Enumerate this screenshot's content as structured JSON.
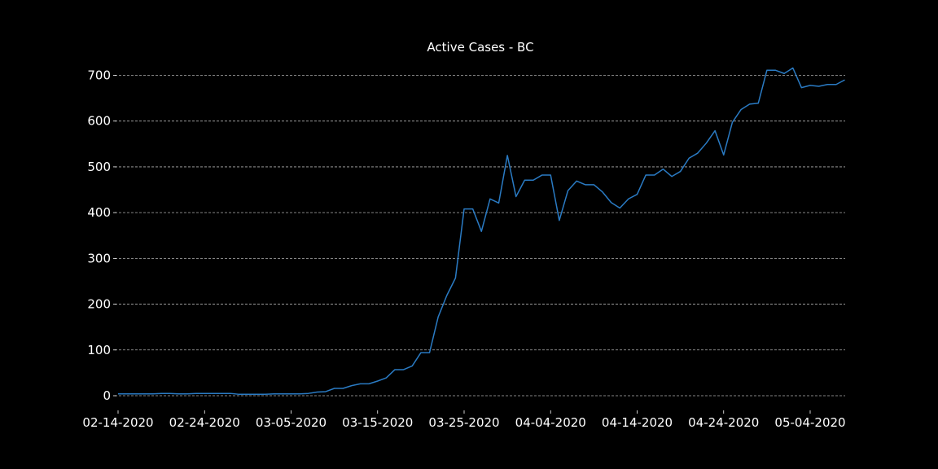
{
  "chart_data": {
    "type": "line",
    "title": "Active Cases - BC",
    "xlabel": "",
    "ylabel": "",
    "x_start": "02-14-2020",
    "x_tick_labels": [
      "02-14-2020",
      "02-24-2020",
      "03-05-2020",
      "03-15-2020",
      "03-25-2020",
      "04-04-2020",
      "04-14-2020",
      "04-24-2020",
      "05-04-2020"
    ],
    "y_ticks": [
      0,
      100,
      200,
      300,
      400,
      500,
      600,
      700
    ],
    "xlim": [
      "02-14-2020",
      "05-04-2020"
    ],
    "ylim": [
      0,
      740
    ],
    "grid": "y dashed",
    "series": [
      {
        "color": "#2a7bc4",
        "values": [
          4,
          4,
          4,
          4,
          4,
          5,
          5,
          4,
          4,
          5,
          5,
          5,
          5,
          5,
          3,
          3,
          3,
          3,
          4,
          4,
          4,
          4,
          5,
          8,
          9,
          16,
          16,
          22,
          26,
          26,
          32,
          39,
          57,
          57,
          65,
          94,
          94,
          172,
          219,
          257,
          408,
          408,
          359,
          430,
          421,
          525,
          435,
          471,
          471,
          482,
          482,
          383,
          448,
          469,
          461,
          461,
          445,
          422,
          410,
          430,
          440,
          482,
          482,
          495,
          479,
          490,
          519,
          530,
          552,
          579,
          526,
          597,
          625,
          637,
          639,
          711,
          711,
          704,
          716,
          673,
          678,
          676,
          680,
          680,
          690
        ]
      }
    ]
  }
}
